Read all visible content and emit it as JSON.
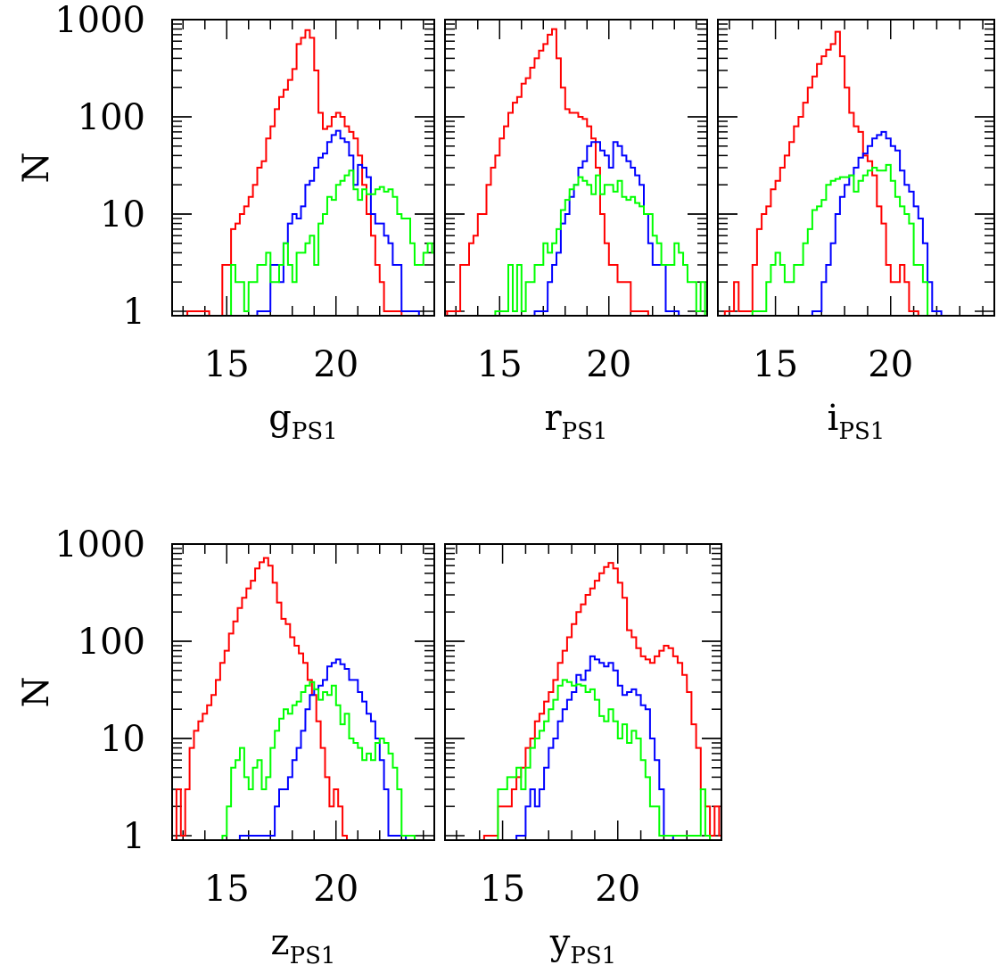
{
  "figure": {
    "rows": [
      [
        "g",
        "r",
        "i"
      ],
      [
        "z",
        "y"
      ]
    ]
  },
  "chart_data": [
    {
      "type": "histogram",
      "band": "g",
      "xlabel_main": "g",
      "xlabel_sub": "PS1",
      "ylabel": "N",
      "xlim": [
        12.5,
        24.5
      ],
      "ylim": [
        0.9,
        1000
      ],
      "yscale": "log",
      "xticks": [
        15,
        20
      ],
      "yticks": [
        1,
        10,
        100,
        1000
      ],
      "bin_width": 0.2,
      "series": [
        {
          "color": "#ff0000",
          "start": 13.2,
          "counts": [
            1,
            1,
            1,
            1,
            1,
            0,
            0,
            0,
            3,
            3,
            7,
            8,
            10,
            12,
            15,
            20,
            30,
            35,
            60,
            80,
            120,
            160,
            190,
            240,
            310,
            560,
            650,
            780,
            650,
            300,
            110,
            75,
            80,
            100,
            110,
            100,
            80,
            70,
            60,
            40,
            20,
            10,
            6,
            3,
            2,
            1,
            1,
            1,
            1
          ]
        },
        {
          "color": "#0000ff",
          "start": 16.4,
          "counts": [
            1,
            1,
            1,
            3,
            3,
            2,
            5,
            8,
            10,
            9,
            12,
            20,
            22,
            30,
            38,
            42,
            55,
            65,
            72,
            60,
            55,
            40,
            20,
            32,
            30,
            24,
            10,
            8,
            8,
            6,
            5,
            3,
            3,
            1,
            1,
            1,
            1
          ]
        },
        {
          "color": "#00ff00",
          "start": 15.2,
          "counts": [
            3,
            2,
            2,
            1,
            2,
            2,
            3,
            3,
            4,
            2,
            2,
            3,
            5,
            3,
            2,
            4,
            4,
            5,
            6,
            3,
            8,
            10,
            15,
            14,
            20,
            22,
            25,
            28,
            18,
            14,
            18,
            16,
            16,
            18,
            19,
            17,
            18,
            15,
            10,
            9,
            9,
            5,
            3,
            3,
            4,
            5,
            4,
            3,
            7,
            5,
            10,
            12,
            8,
            4,
            10,
            12,
            8,
            4,
            10,
            7,
            5,
            3,
            10,
            5,
            1,
            15
          ]
        }
      ]
    },
    {
      "type": "histogram",
      "band": "r",
      "xlabel_main": "r",
      "xlabel_sub": "PS1",
      "ylabel": "",
      "xlim": [
        12.5,
        24.5
      ],
      "ylim": [
        0.9,
        1000
      ],
      "yscale": "log",
      "xticks": [
        15,
        20
      ],
      "yticks": [
        1,
        10,
        100,
        1000
      ],
      "bin_width": 0.2,
      "series": [
        {
          "color": "#ff0000",
          "start": 12.6,
          "counts": [
            1,
            1,
            1,
            3,
            3,
            5,
            6,
            10,
            10,
            20,
            30,
            40,
            60,
            80,
            110,
            140,
            160,
            220,
            250,
            320,
            400,
            480,
            560,
            700,
            800,
            400,
            200,
            120,
            110,
            110,
            100,
            95,
            80,
            60,
            30,
            10,
            5,
            3,
            3,
            2,
            2,
            2,
            1,
            1,
            1,
            1
          ]
        },
        {
          "color": "#0000ff",
          "start": 16.6,
          "counts": [
            1,
            1,
            1,
            2,
            3,
            4,
            8,
            10,
            15,
            20,
            30,
            35,
            50,
            55,
            55,
            45,
            40,
            30,
            55,
            50,
            40,
            35,
            30,
            25,
            20,
            10,
            5,
            3,
            3,
            3,
            1,
            1,
            1
          ]
        },
        {
          "color": "#00ff00",
          "start": 14.8,
          "counts": [
            1,
            1,
            1,
            3,
            1,
            3,
            1,
            2,
            2,
            3,
            3,
            5,
            4,
            5,
            7,
            11,
            14,
            18,
            20,
            24,
            22,
            20,
            16,
            25,
            16,
            20,
            20,
            17,
            22,
            15,
            14,
            15,
            13,
            12,
            10,
            10,
            6,
            5,
            3,
            3,
            3,
            5,
            4,
            3,
            2,
            2,
            1,
            2
          ]
        }
      ]
    },
    {
      "type": "histogram",
      "band": "i",
      "xlabel_main": "i",
      "xlabel_sub": "PS1",
      "ylabel": "",
      "xlim": [
        12.5,
        24.5
      ],
      "ylim": [
        0.9,
        1000
      ],
      "yscale": "log",
      "xticks": [
        15,
        20
      ],
      "yticks": [
        1,
        10,
        100,
        1000
      ],
      "bin_width": 0.2,
      "series": [
        {
          "color": "#ff0000",
          "start": 12.8,
          "counts": [
            1,
            1,
            2,
            1,
            1,
            1,
            3,
            7,
            10,
            12,
            18,
            22,
            30,
            40,
            55,
            80,
            100,
            140,
            200,
            260,
            350,
            420,
            490,
            560,
            750,
            420,
            200,
            110,
            80,
            70,
            40,
            35,
            25,
            12,
            8,
            3,
            2,
            2,
            3,
            2,
            1,
            1
          ]
        },
        {
          "color": "#0000ff",
          "start": 16.6,
          "counts": [
            1,
            1,
            2,
            3,
            5,
            10,
            15,
            20,
            25,
            30,
            38,
            42,
            50,
            60,
            65,
            70,
            60,
            50,
            45,
            28,
            20,
            17,
            12,
            9,
            5,
            2,
            1,
            1
          ]
        },
        {
          "color": "#00ff00",
          "start": 14.0,
          "counts": [
            1,
            1,
            1,
            2,
            3,
            4,
            3,
            2,
            2,
            3,
            3,
            5,
            7,
            11,
            12,
            14,
            20,
            22,
            23,
            24,
            24,
            25,
            17,
            22,
            25,
            28,
            30,
            28,
            28,
            32,
            22,
            15,
            12,
            10,
            8,
            3,
            3,
            2
          ]
        }
      ]
    },
    {
      "type": "histogram",
      "band": "z",
      "xlabel_main": "z",
      "xlabel_sub": "PS1",
      "ylabel": "N",
      "xlim": [
        12.5,
        24.5
      ],
      "ylim": [
        0.9,
        1000
      ],
      "yscale": "log",
      "xticks": [
        15,
        20
      ],
      "yticks": [
        1,
        10,
        100,
        1000
      ],
      "bin_width": 0.2,
      "series": [
        {
          "color": "#ff0000",
          "start": 12.7,
          "counts": [
            3,
            1,
            3,
            8,
            12,
            15,
            18,
            22,
            28,
            40,
            60,
            80,
            120,
            160,
            220,
            280,
            350,
            420,
            560,
            650,
            720,
            600,
            400,
            250,
            170,
            150,
            110,
            90,
            75,
            60,
            40,
            28,
            15,
            8,
            4,
            2,
            3,
            2,
            1
          ]
        },
        {
          "color": "#0000ff",
          "start": 15.6,
          "counts": [
            1,
            1,
            1,
            1,
            1,
            1,
            1,
            1,
            2,
            3,
            3,
            4,
            6,
            8,
            12,
            20,
            28,
            32,
            35,
            40,
            55,
            60,
            65,
            58,
            52,
            40,
            40,
            30,
            24,
            18,
            15,
            10,
            6,
            3,
            1,
            1,
            1,
            1
          ]
        },
        {
          "color": "#00ff00",
          "start": 14.8,
          "counts": [
            1,
            2,
            5,
            6,
            8,
            4,
            3,
            5,
            6,
            3,
            4,
            8,
            12,
            16,
            20,
            18,
            22,
            24,
            30,
            35,
            38,
            32,
            25,
            30,
            28,
            35,
            22,
            14,
            18,
            10,
            9,
            8,
            6,
            7,
            6,
            9,
            10,
            9,
            7,
            5,
            3,
            1,
            1,
            1
          ]
        }
      ]
    },
    {
      "type": "histogram",
      "band": "y",
      "xlabel_main": "y",
      "xlabel_sub": "PS1",
      "ylabel": "",
      "xlim": [
        12.5,
        24.5
      ],
      "ylim": [
        0.9,
        1000
      ],
      "yscale": "log",
      "xticks": [
        15,
        20
      ],
      "yticks": [
        1,
        10,
        100,
        1000
      ],
      "bin_width": 0.2,
      "series": [
        {
          "color": "#ff0000",
          "start": 14.2,
          "counts": [
            1,
            1,
            1,
            2,
            2,
            2,
            3,
            4,
            5,
            8,
            10,
            15,
            18,
            24,
            30,
            40,
            60,
            80,
            110,
            150,
            200,
            240,
            300,
            350,
            420,
            500,
            580,
            640,
            560,
            400,
            280,
            130,
            110,
            85,
            70,
            65,
            60,
            70,
            80,
            90,
            85,
            70,
            60,
            45,
            30,
            14,
            8,
            3,
            2,
            1,
            2,
            1,
            1,
            1,
            1,
            1,
            1,
            1,
            1
          ]
        },
        {
          "color": "#0000ff",
          "start": 15.6,
          "counts": [
            1,
            1,
            2,
            3,
            2,
            3,
            5,
            8,
            10,
            15,
            20,
            25,
            30,
            45,
            40,
            50,
            70,
            65,
            60,
            55,
            60,
            50,
            35,
            28,
            30,
            32,
            28,
            22,
            20,
            10,
            6,
            3,
            1,
            1
          ]
        },
        {
          "color": "#00ff00",
          "start": 14.8,
          "counts": [
            3,
            3,
            4,
            4,
            5,
            3,
            5,
            8,
            10,
            12,
            15,
            20,
            25,
            35,
            40,
            38,
            35,
            36,
            35,
            30,
            32,
            25,
            17,
            15,
            20,
            15,
            10,
            14,
            9,
            12,
            10,
            6,
            4,
            2,
            2,
            1,
            1,
            1,
            1,
            1,
            1,
            1,
            1,
            1,
            3,
            1
          ]
        }
      ]
    }
  ]
}
